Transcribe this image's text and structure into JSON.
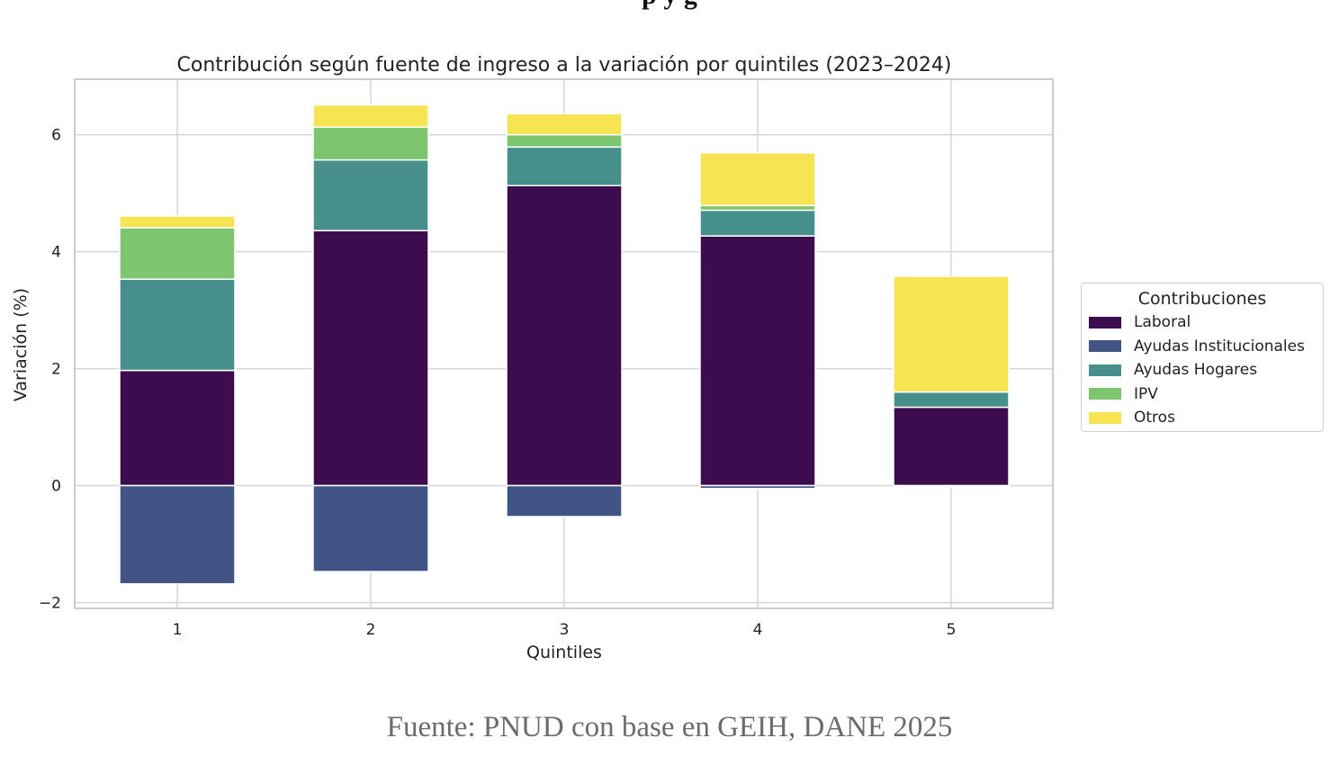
{
  "page": {
    "cut_heading": "p                                               y g",
    "source_note": "Fuente: PNUD con base en GEIH, DANE 2025"
  },
  "chart_data": {
    "type": "bar",
    "stacked": true,
    "title": "Contribución según fuente de ingreso a la variación por quintiles (2023–2024)",
    "xlabel": "Quintiles",
    "ylabel": "Variación (%)",
    "categories": [
      "1",
      "2",
      "3",
      "4",
      "5"
    ],
    "ylim": [
      -2.1,
      6.95
    ],
    "yticks": [
      -2,
      0,
      2,
      4,
      6
    ],
    "ytick_labels": [
      "−2",
      "0",
      "2",
      "4",
      "6"
    ],
    "grid": true,
    "legend": {
      "title": "Contribuciones",
      "placement": "right"
    },
    "series": [
      {
        "name": "Laboral",
        "color": "#3d0c4f",
        "values": [
          1.97,
          4.36,
          5.13,
          4.27,
          1.34
        ]
      },
      {
        "name": "Ayudas Institucionales",
        "color": "#415486",
        "values": [
          -1.68,
          -1.47,
          -0.53,
          -0.05,
          -0.02
        ]
      },
      {
        "name": "Ayudas Hogares",
        "color": "#478f8b",
        "values": [
          1.56,
          1.21,
          0.66,
          0.44,
          0.26
        ]
      },
      {
        "name": "IPV",
        "color": "#7dc66f",
        "values": [
          0.88,
          0.56,
          0.21,
          0.08,
          0.0
        ]
      },
      {
        "name": "Otros",
        "color": "#f6e452",
        "values": [
          0.2,
          0.38,
          0.36,
          0.9,
          1.98
        ]
      }
    ]
  }
}
